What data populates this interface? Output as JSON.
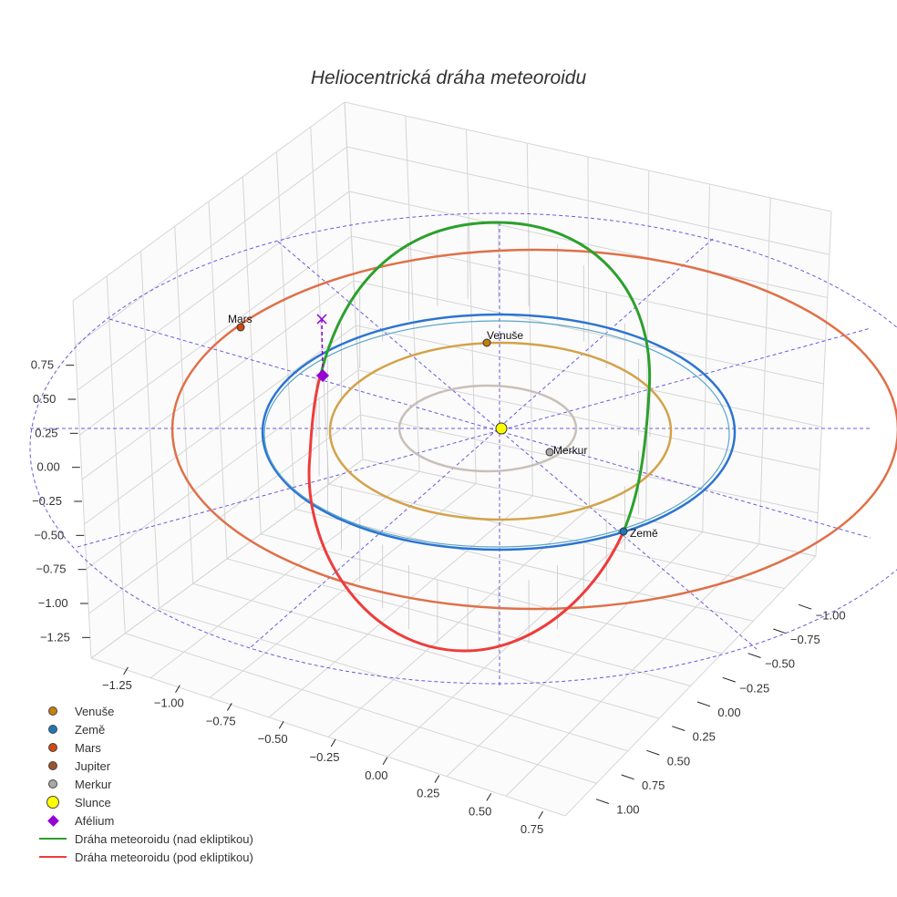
{
  "chart_data": {
    "type": "scatter-3d",
    "title": "Heliocentrická dráha meteoroidu",
    "x_ticks": [
      "−1.25",
      "−1.00",
      "−0.75",
      "−0.50",
      "−0.25",
      "0.00",
      "0.25",
      "0.50",
      "0.75"
    ],
    "y_ticks": [
      "−1.00",
      "−0.75",
      "−0.50",
      "−0.25",
      "0.00",
      "0.25",
      "0.50",
      "0.75",
      "1.00"
    ],
    "z_ticks": [
      "0.75",
      "0.50",
      "0.25",
      "0.00",
      "−0.25",
      "−0.50",
      "−0.75",
      "−1.00",
      "−1.25"
    ],
    "bodies": [
      {
        "name": "Venuše",
        "label": "Venuše",
        "color": "#c87f0a"
      },
      {
        "name": "Země",
        "label": "Země",
        "color": "#1f77b4"
      },
      {
        "name": "Mars",
        "label": "Mars",
        "color": "#d04a10"
      },
      {
        "name": "Merkur",
        "label": "Merkur",
        "color": "#a9a9a9"
      },
      {
        "name": "Slunce",
        "label": "",
        "color": "#ffff00"
      }
    ],
    "orbit_colors": {
      "merkur": "#c8c0b8",
      "venuse": "#d4a24a",
      "zeme": "#2b74d0",
      "mars": "#df7048",
      "reference": "#6a5ae0"
    },
    "meteoroid_colors": {
      "above": "#2ca02c",
      "below": "#ef3b3b",
      "aphelion": "#9400d3"
    },
    "legend": [
      {
        "label": "Venuše",
        "marker": "dot",
        "color": "#c87f0a"
      },
      {
        "label": "Země",
        "marker": "dot",
        "color": "#1f77b4"
      },
      {
        "label": "Mars",
        "marker": "dot",
        "color": "#d04a10"
      },
      {
        "label": "Jupiter",
        "marker": "dot",
        "color": "#a0522d"
      },
      {
        "label": "Merkur",
        "marker": "dot",
        "color": "#a9a9a9"
      },
      {
        "label": "Slunce",
        "marker": "bigdot",
        "color": "#ffff00"
      },
      {
        "label": "Afélium",
        "marker": "diamond",
        "color": "#9400d3"
      },
      {
        "label": "Dráha meteoroidu (nad ekliptikou)",
        "marker": "line",
        "color": "#2ca02c"
      },
      {
        "label": "Dráha meteoroidu (pod ekliptikou)",
        "marker": "line",
        "color": "#ef3b3b"
      }
    ],
    "legend_position": "bottom-left"
  }
}
